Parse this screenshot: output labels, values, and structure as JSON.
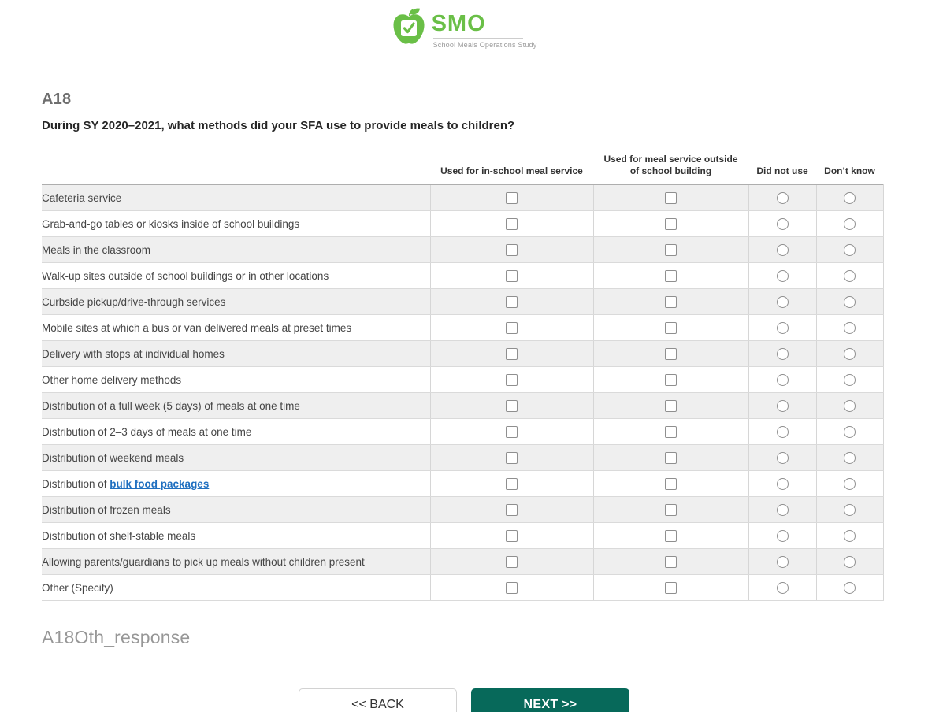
{
  "logo": {
    "acronym": "SMO",
    "tagline": "School Meals Operations Study",
    "apple_icon": "apple-checkmark-icon",
    "brand_green": "#6abf47"
  },
  "question": {
    "id": "A18",
    "text": "During SY 2020–2021, what methods did your SFA use to provide meals to children?"
  },
  "table": {
    "columns": [
      {
        "label": "Used for in-school meal service",
        "type": "checkbox"
      },
      {
        "label": "Used for meal service outside of school building",
        "type": "checkbox"
      },
      {
        "label": "Did not use",
        "type": "radio"
      },
      {
        "label": "Don’t know",
        "type": "radio"
      }
    ],
    "rows": [
      {
        "label": "Cafeteria service"
      },
      {
        "label": "Grab-and-go tables or kiosks inside of school buildings"
      },
      {
        "label": "Meals in the classroom"
      },
      {
        "label": "Walk-up sites outside of school buildings or in other locations"
      },
      {
        "label": "Curbside pickup/drive-through services"
      },
      {
        "label": "Mobile sites at which a bus or van delivered meals at preset times"
      },
      {
        "label": "Delivery with stops at individual homes"
      },
      {
        "label": "Other home delivery methods"
      },
      {
        "label": "Distribution of a full week (5 days) of meals at one time"
      },
      {
        "label": "Distribution of 2–3 days of meals at one time"
      },
      {
        "label": "Distribution of weekend meals"
      },
      {
        "label": "Distribution of ",
        "link": "bulk food packages"
      },
      {
        "label": "Distribution of frozen meals"
      },
      {
        "label": "Distribution of shelf-stable meals"
      },
      {
        "label": "Allowing parents/guardians to pick up meals without children present"
      },
      {
        "label": "Other (Specify)"
      }
    ],
    "all_inputs_state": "unchecked"
  },
  "other_response_label": "A18Oth_response",
  "buttons": {
    "back": "<< BACK",
    "next": "NEXT >>"
  },
  "colors": {
    "accent_teal": "#07695a",
    "row_alt_gray": "#efefef",
    "link_blue": "#1f6fc0",
    "brand_green": "#6abf47"
  }
}
